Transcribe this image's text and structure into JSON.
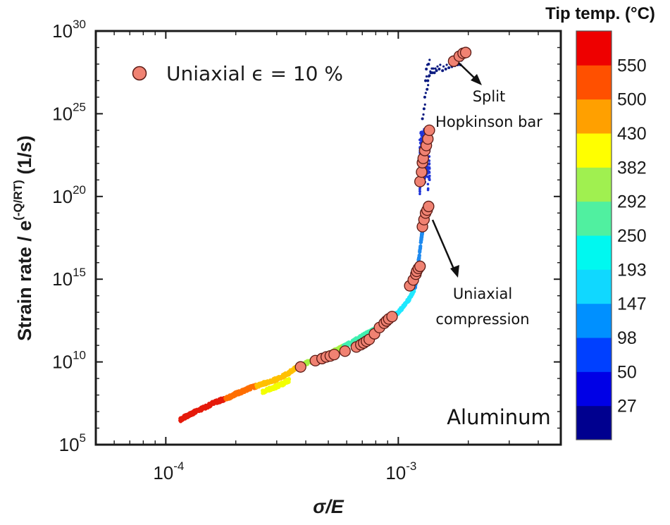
{
  "chart_data": {
    "type": "scatter",
    "title": "",
    "xlabel": "σ/E",
    "ylabel_main": "Strain rate / e",
    "ylabel_exp": "(-Q/RT)",
    "ylabel_unit": " (1/s)",
    "xscale": "log",
    "yscale": "log",
    "xlim": [
      5e-05,
      0.005
    ],
    "ylim": [
      100000,
      1e+30
    ],
    "x_ticks": [
      {
        "base": "10",
        "exp": "-4",
        "value": 0.0001
      },
      {
        "base": "10",
        "exp": "-3",
        "value": 0.001
      }
    ],
    "y_ticks": [
      {
        "base": "10",
        "exp": "5",
        "value": 100000.0
      },
      {
        "base": "10",
        "exp": "10",
        "value": 10000000000.0
      },
      {
        "base": "10",
        "exp": "15",
        "value": 1000000000000000.0
      },
      {
        "base": "10",
        "exp": "20",
        "value": 1e+20
      },
      {
        "base": "10",
        "exp": "25",
        "value": 1e+25
      },
      {
        "base": "10",
        "exp": "30",
        "value": 1e+30
      }
    ],
    "grid": false,
    "legend_position": "top-left",
    "legend": {
      "label": "Uniaxial ϵ = 10 %",
      "marker_color": "#f08272"
    },
    "colorbar": {
      "title": "Tip temp. (°C)",
      "labels": [
        "27",
        "50",
        "98",
        "147",
        "193",
        "250",
        "292",
        "382",
        "430",
        "500",
        "550"
      ],
      "colors": [
        "#00008f",
        "#0000e6",
        "#0040ff",
        "#0090ff",
        "#10d8ff",
        "#00f8f0",
        "#50f0a0",
        "#a0f050",
        "#ffff00",
        "#ffa000",
        "#ff5000",
        "#ee0000"
      ]
    },
    "annotations": [
      {
        "text_lines": [
          "Split",
          "Hopkinson bar"
        ],
        "points_to": [
          0.00185,
          1e+28
        ]
      },
      {
        "text_lines": [
          "Uniaxial",
          "compression"
        ],
        "points_to": [
          0.00133,
          1e+19
        ]
      }
    ],
    "material_label": "Aluminum",
    "band_series": [
      {
        "name": "",
        "color": "#e51a0b",
        "x": [
          0.000115,
          0.00012,
          0.000128,
          0.000138,
          0.00015,
          0.00016,
          0.00017,
          0.00018
        ],
        "y": [
          3000000.0,
          4500000.0,
          7000000.0,
          12000000.0,
          20000000.0,
          33000000.0,
          45000000.0,
          60000000.0
        ]
      },
      {
        "name": "",
        "color": "#ff6e00",
        "x": [
          0.00018,
          0.00019,
          0.0002,
          0.00021,
          0.00022,
          0.00023,
          0.000245
        ],
        "y": [
          60000000.0,
          80000000.0,
          120000000.0,
          150000000.0,
          200000000.0,
          270000000.0,
          350000000.0
        ]
      },
      {
        "name": "",
        "color": "#ffc000",
        "x": [
          0.000245,
          0.00026,
          0.00028,
          0.0003,
          0.00032,
          0.00034,
          0.00036,
          0.00038
        ],
        "y": [
          350000000.0,
          480000000.0,
          650000000.0,
          900000000.0,
          1400000000.0,
          2300000000.0,
          4000000000.0,
          6000000000.0
        ]
      },
      {
        "name": "",
        "color": "#f3ff00",
        "x": [
          0.00026,
          0.00028,
          0.0003,
          0.00032,
          0.00034
        ],
        "y": [
          160000000.0,
          230000000.0,
          330000000.0,
          500000000.0,
          800000000.0
        ]
      },
      {
        "name": "",
        "color": "#a4f040",
        "x": [
          0.00038,
          0.00042,
          0.00046,
          0.0005,
          0.00054,
          0.00058
        ],
        "y": [
          6000000000.0,
          11000000000.0,
          18000000000.0,
          30000000000.0,
          50000000000.0,
          80000000000.0
        ]
      },
      {
        "name": "",
        "color": "#40f0b0",
        "x": [
          0.00058,
          0.00063,
          0.00068,
          0.00073,
          0.00078,
          0.00082
        ],
        "y": [
          80000000000.0,
          150000000000.0,
          280000000000.0,
          500000000000.0,
          800000000000.0,
          1300000000000.0
        ]
      },
      {
        "name": "",
        "color": "#20e8ff",
        "x": [
          0.00082,
          0.00088,
          0.00094,
          0.001,
          0.00106,
          0.00112,
          0.00118
        ],
        "y": [
          1300000000000.0,
          2500000000000.0,
          5000000000000.0,
          10000000000000.0,
          25000000000000.0,
          70000000000000.0,
          300000000000000.0
        ]
      },
      {
        "name": "",
        "color": "#1f8aef",
        "x": [
          0.00118,
          0.00122,
          0.00126,
          0.0013,
          0.00133
        ],
        "y": [
          300000000000000.0,
          1e+16,
          4e+17,
          5e+18,
          2e+19
        ]
      }
    ],
    "shock_series": {
      "color": "#2035d8",
      "x": [
        0.00124,
        0.00125,
        0.00126,
        0.00127,
        0.00128,
        0.00129,
        0.0013,
        0.00132,
        0.00134,
        0.00136
      ],
      "y_min": [
        1e+20,
        5e+20,
        1e+21,
        3e+21,
        2e+21,
        1e+21,
        6e+20,
        1e+21,
        1.5e+20,
        3e+20
      ],
      "y_max": [
        3e+23,
        8e+23,
        1e+24,
        5e+23,
        8e+23,
        2e+24,
        1e+24,
        2e+23,
        1e+24,
        8e+23
      ]
    },
    "dark_dots": {
      "color": "#0a1a80",
      "x": [
        0.00127,
        0.00129,
        0.0013,
        0.00131,
        0.00132,
        0.00133,
        0.00134,
        0.00135,
        0.00136,
        0.00138,
        0.0014,
        0.00143,
        0.00146,
        0.0015,
        0.00155,
        0.0016,
        0.00165,
        0.0017,
        0.00175,
        0.0018,
        0.00185
      ],
      "y": [
        5e+24,
        2e+25,
        1e+26,
        1e+27,
        5e+27,
        3e+26,
        1e+27,
        1e+28,
        2e+27,
        3e+27,
        3e+27,
        3e+27,
        4e+27,
        5e+27,
        4e+27,
        5e+27,
        6e+27,
        7e+27,
        8e+27,
        9e+27,
        9e+27
      ]
    },
    "uniaxial_points": {
      "x": [
        0.00038,
        0.00044,
        0.00047,
        0.00049,
        0.00051,
        0.00053,
        0.00059,
        0.00066,
        0.00069,
        0.00071,
        0.00073,
        0.00075,
        0.00079,
        0.00083,
        0.00087,
        0.00089,
        0.00091,
        0.00094,
        0.00112,
        0.00116,
        0.00119,
        0.0012,
        0.00122,
        0.00124,
        0.00127,
        0.00129,
        0.00131,
        0.00133,
        0.00135,
        0.00124,
        0.00126,
        0.00127,
        0.00128,
        0.0013,
        0.00132,
        0.00134,
        0.00136,
        0.00173,
        0.00183,
        0.0019,
        0.00195
      ],
      "y": [
        5000000000.0,
        12000000000.0,
        16000000000.0,
        20000000000.0,
        23000000000.0,
        28000000000.0,
        45000000000.0,
        80000000000.0,
        110000000000.0,
        140000000000.0,
        180000000000.0,
        230000000000.0,
        500000000000.0,
        1200000000000.0,
        2200000000000.0,
        3000000000000.0,
        4000000000000.0,
        5500000000000.0,
        400000000000000.0,
        900000000000000.0,
        2000000000000000.0,
        3000000000000000.0,
        4500000000000000.0,
        6000000000000000.0,
        1.5e+18,
        4e+18,
        1e+19,
        1.5e+19,
        2.5e+19,
        8e+20,
        3e+21,
        1.1e+22,
        2e+22,
        6e+22,
        1.2e+23,
        3e+23,
        1e+24,
        1.5e+28,
        3e+28,
        4.5e+28,
        5e+28
      ]
    }
  }
}
